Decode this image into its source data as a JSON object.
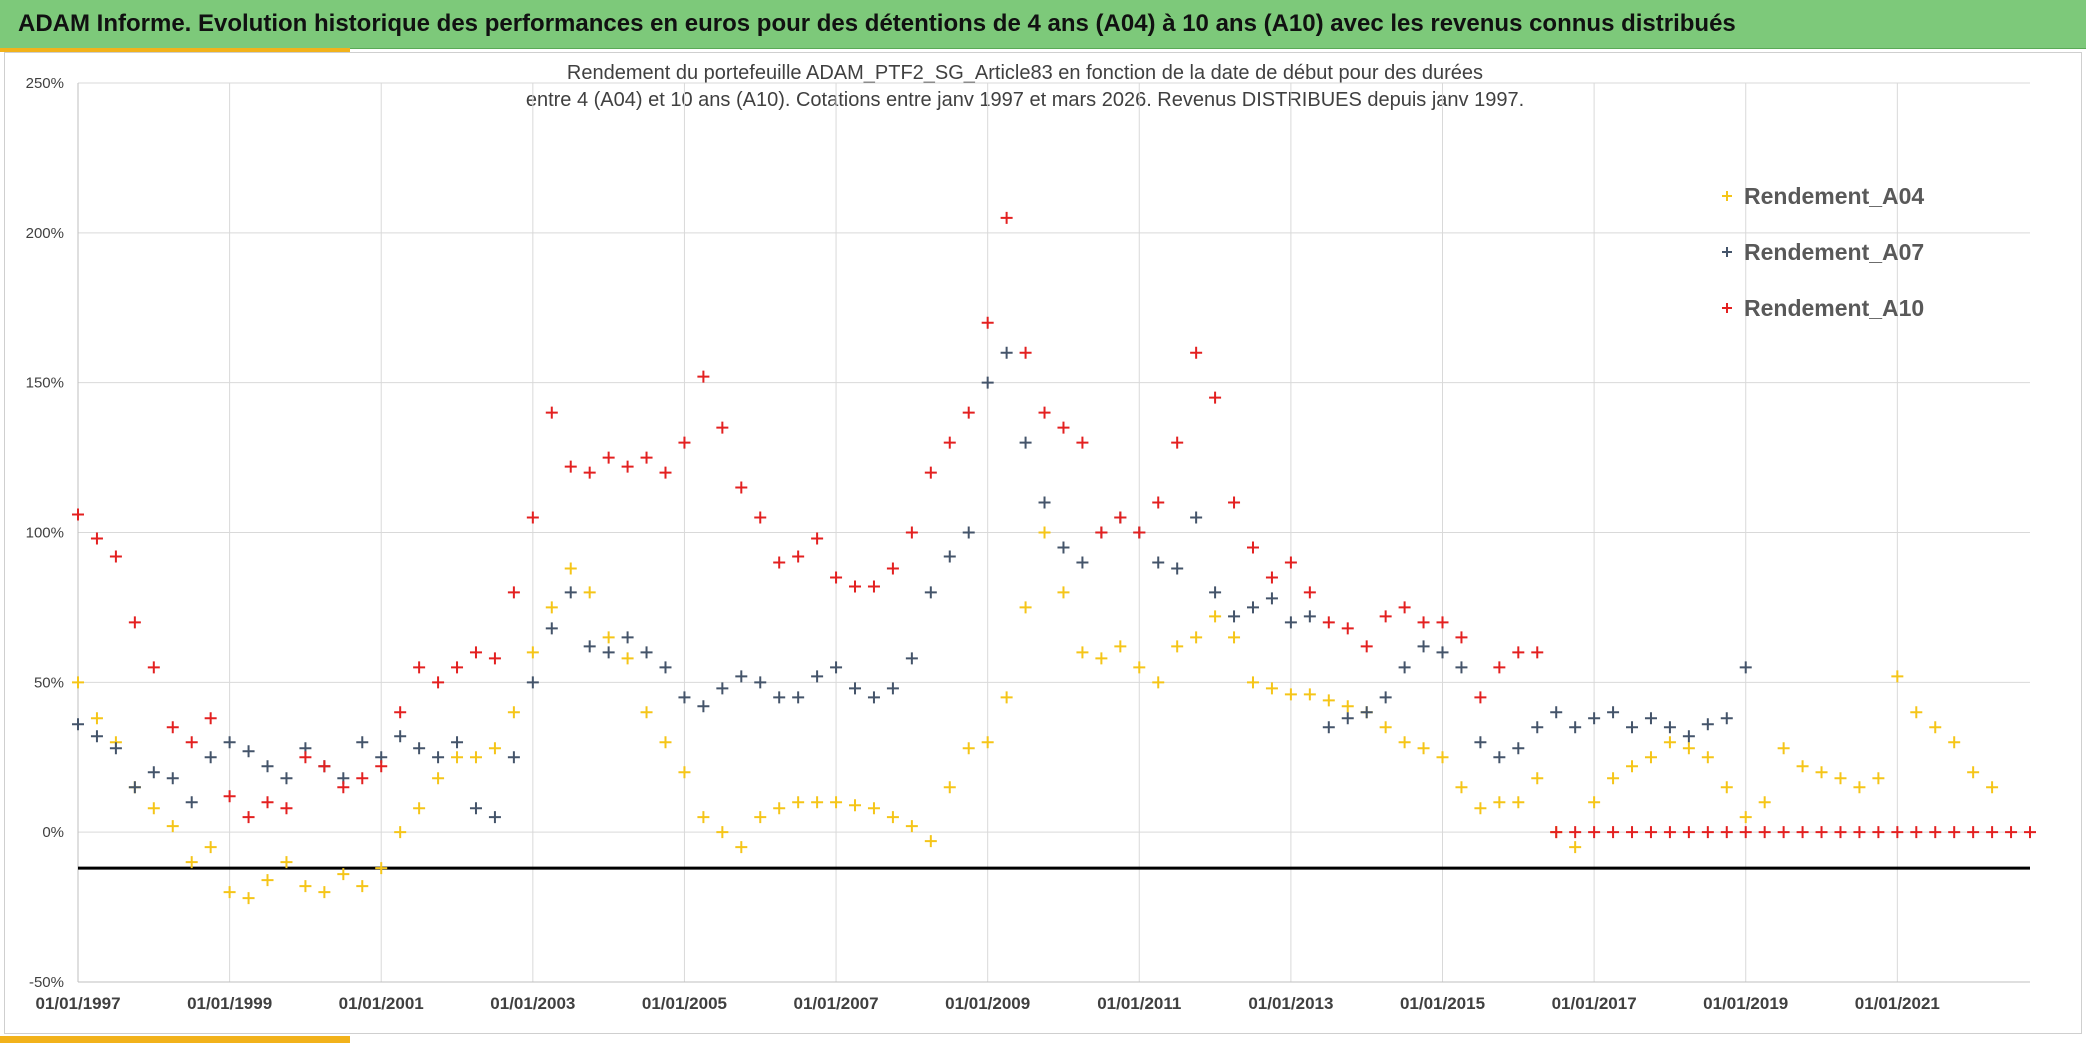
{
  "header": {
    "title": "ADAM Informe. Evolution historique des performances en euros pour des détentions de 4 ans (A04) à 10 ans (A10) avec les revenus connus distribués"
  },
  "colors": {
    "A04": "#f5c518",
    "A07": "#44546a",
    "A10": "#e32020",
    "baseline": "#000000",
    "grid": "#d9d9d9",
    "banner": "#7dc97a",
    "accent": "#f2b21b"
  },
  "chart_data": {
    "type": "scatter",
    "title_line1": "Rendement du portefeuille ADAM_PTF2_SG_Article83  en fonction de la date de début pour des durées",
    "title_line2": "entre 4 (A04) et 10 ans (A10). Cotations entre janv 1997 et mars 2026. Revenus DISTRIBUES depuis janv 1997.",
    "xlabel": "",
    "ylabel": "",
    "xlim": [
      1997.0,
      2022.75
    ],
    "ylim": [
      -50,
      250
    ],
    "y_ticks": [
      -50,
      0,
      50,
      100,
      150,
      200,
      250
    ],
    "y_tick_labels": [
      "-50%",
      "0%",
      "50%",
      "100%",
      "150%",
      "200%",
      "250%"
    ],
    "x_ticks": [
      1997,
      1999,
      2001,
      2003,
      2005,
      2007,
      2009,
      2011,
      2013,
      2015,
      2017,
      2019,
      2021
    ],
    "x_tick_labels": [
      "01/01/1997",
      "01/01/1999",
      "01/01/2001",
      "01/01/2003",
      "01/01/2005",
      "01/01/2007",
      "01/01/2009",
      "01/01/2011",
      "01/01/2013",
      "01/01/2015",
      "01/01/2017",
      "01/01/2019",
      "01/01/2021"
    ],
    "reference_line_y": -12,
    "legend_position": "top-right",
    "marker": "+",
    "series": [
      {
        "name": "Rendement_A04",
        "x": [
          1997.0,
          1997.25,
          1997.5,
          1997.75,
          1998.0,
          1998.25,
          1998.5,
          1998.75,
          1999.0,
          1999.25,
          1999.5,
          1999.75,
          2000.0,
          2000.25,
          2000.5,
          2000.75,
          2001.0,
          2001.25,
          2001.5,
          2001.75,
          2002.0,
          2002.25,
          2002.5,
          2002.75,
          2003.0,
          2003.25,
          2003.5,
          2003.75,
          2004.0,
          2004.25,
          2004.5,
          2004.75,
          2005.0,
          2005.25,
          2005.5,
          2005.75,
          2006.0,
          2006.25,
          2006.5,
          2006.75,
          2007.0,
          2007.25,
          2007.5,
          2007.75,
          2008.0,
          2008.25,
          2008.5,
          2008.75,
          2009.0,
          2009.25,
          2009.5,
          2009.75,
          2010.0,
          2010.25,
          2010.5,
          2010.75,
          2011.0,
          2011.25,
          2011.5,
          2011.75,
          2012.0,
          2012.25,
          2012.5,
          2012.75,
          2013.0,
          2013.25,
          2013.5,
          2013.75,
          2014.0,
          2014.25,
          2014.5,
          2014.75,
          2015.0,
          2015.25,
          2015.5,
          2015.75,
          2016.0,
          2016.25,
          2016.5,
          2016.75,
          2017.0,
          2017.25,
          2017.5,
          2017.75,
          2018.0,
          2018.25,
          2018.5,
          2018.75,
          2019.0,
          2019.25,
          2019.5,
          2019.75,
          2020.0,
          2020.25,
          2020.5,
          2020.75,
          2021.0,
          2021.25,
          2021.5,
          2021.75,
          2022.0,
          2022.25
        ],
        "y": [
          50,
          38,
          30,
          15,
          8,
          2,
          -10,
          -5,
          -20,
          -22,
          -16,
          -10,
          -18,
          -20,
          -14,
          -18,
          -12,
          0,
          8,
          18,
          25,
          25,
          28,
          40,
          60,
          75,
          88,
          80,
          65,
          58,
          40,
          30,
          20,
          5,
          0,
          -5,
          5,
          8,
          10,
          10,
          10,
          9,
          8,
          5,
          2,
          -3,
          15,
          28,
          30,
          45,
          75,
          100,
          80,
          60,
          58,
          62,
          55,
          50,
          62,
          65,
          72,
          65,
          50,
          48,
          46,
          46,
          44,
          42,
          40,
          35,
          30,
          28,
          25,
          15,
          8,
          10,
          10,
          18,
          0,
          -5,
          10,
          18,
          22,
          25,
          30,
          28,
          25,
          15,
          5,
          10,
          28,
          22,
          20,
          18,
          15,
          18,
          52,
          40,
          35,
          30,
          20,
          15
        ]
      },
      {
        "name": "Rendement_A07",
        "x": [
          1997.0,
          1997.25,
          1997.5,
          1997.75,
          1998.0,
          1998.25,
          1998.5,
          1998.75,
          1999.0,
          1999.25,
          1999.5,
          1999.75,
          2000.0,
          2000.25,
          2000.5,
          2000.75,
          2001.0,
          2001.25,
          2001.5,
          2001.75,
          2002.0,
          2002.25,
          2002.5,
          2002.75,
          2003.0,
          2003.25,
          2003.5,
          2003.75,
          2004.0,
          2004.25,
          2004.5,
          2004.75,
          2005.0,
          2005.25,
          2005.5,
          2005.75,
          2006.0,
          2006.25,
          2006.5,
          2006.75,
          2007.0,
          2007.25,
          2007.5,
          2007.75,
          2008.0,
          2008.25,
          2008.5,
          2008.75,
          2009.0,
          2009.25,
          2009.5,
          2009.75,
          2010.0,
          2010.25,
          2010.5,
          2010.75,
          2011.0,
          2011.25,
          2011.5,
          2011.75,
          2012.0,
          2012.25,
          2012.5,
          2012.75,
          2013.0,
          2013.25,
          2013.5,
          2013.75,
          2014.0,
          2014.25,
          2014.5,
          2014.75,
          2015.0,
          2015.25,
          2015.5,
          2015.75,
          2016.0,
          2016.25,
          2016.5,
          2016.75,
          2017.0,
          2017.25,
          2017.5,
          2017.75,
          2018.0,
          2018.25,
          2018.5,
          2018.75,
          2019.0
        ],
        "y": [
          36,
          32,
          28,
          15,
          20,
          18,
          10,
          25,
          30,
          27,
          22,
          18,
          28,
          22,
          18,
          30,
          25,
          32,
          28,
          25,
          30,
          8,
          5,
          25,
          50,
          68,
          80,
          62,
          60,
          65,
          60,
          55,
          45,
          42,
          48,
          52,
          50,
          45,
          45,
          52,
          55,
          48,
          45,
          48,
          58,
          80,
          92,
          100,
          150,
          160,
          130,
          110,
          95,
          90,
          100,
          105,
          100,
          90,
          88,
          105,
          80,
          72,
          75,
          78,
          70,
          72,
          35,
          38,
          40,
          45,
          55,
          62,
          60,
          55,
          30,
          25,
          28,
          35,
          40,
          35,
          38,
          40,
          35,
          38,
          35,
          32,
          36,
          38,
          55
        ]
      },
      {
        "name": "Rendement_A10",
        "x": [
          1997.0,
          1997.25,
          1997.5,
          1997.75,
          1998.0,
          1998.25,
          1998.5,
          1998.75,
          1999.0,
          1999.25,
          1999.5,
          1999.75,
          2000.0,
          2000.25,
          2000.5,
          2000.75,
          2001.0,
          2001.25,
          2001.5,
          2001.75,
          2002.0,
          2002.25,
          2002.5,
          2002.75,
          2003.0,
          2003.25,
          2003.5,
          2003.75,
          2004.0,
          2004.25,
          2004.5,
          2004.75,
          2005.0,
          2005.25,
          2005.5,
          2005.75,
          2006.0,
          2006.25,
          2006.5,
          2006.75,
          2007.0,
          2007.25,
          2007.5,
          2007.75,
          2008.0,
          2008.25,
          2008.5,
          2008.75,
          2009.0,
          2009.25,
          2009.5,
          2009.75,
          2010.0,
          2010.25,
          2010.5,
          2010.75,
          2011.0,
          2011.25,
          2011.5,
          2011.75,
          2012.0,
          2012.25,
          2012.5,
          2012.75,
          2013.0,
          2013.25,
          2013.5,
          2013.75,
          2014.0,
          2014.25,
          2014.5,
          2014.75,
          2015.0,
          2015.25,
          2015.5,
          2015.75,
          2016.0,
          2016.25,
          2016.5,
          2016.75,
          2017.0,
          2017.25,
          2017.5,
          2017.75,
          2018.0,
          2018.25,
          2018.5,
          2018.75,
          2019.0,
          2019.25,
          2019.5,
          2019.75,
          2020.0,
          2020.25,
          2020.5,
          2020.75,
          2021.0,
          2021.25,
          2021.5,
          2021.75,
          2022.0,
          2022.25,
          2022.5,
          2022.75
        ],
        "y": [
          106,
          98,
          92,
          70,
          55,
          35,
          30,
          38,
          12,
          5,
          10,
          8,
          25,
          22,
          15,
          18,
          22,
          40,
          55,
          50,
          55,
          60,
          58,
          80,
          105,
          140,
          122,
          120,
          125,
          122,
          125,
          120,
          130,
          152,
          135,
          115,
          105,
          90,
          92,
          98,
          85,
          82,
          82,
          88,
          100,
          120,
          130,
          140,
          170,
          205,
          160,
          140,
          135,
          130,
          100,
          105,
          100,
          110,
          130,
          160,
          145,
          110,
          95,
          85,
          90,
          80,
          70,
          68,
          62,
          72,
          75,
          70,
          70,
          65,
          45,
          55,
          60,
          60,
          0,
          0,
          0,
          0,
          0,
          0,
          0,
          0,
          0,
          0,
          0,
          0,
          0,
          0,
          0,
          0,
          0,
          0,
          0,
          0,
          0,
          0,
          0,
          0,
          0,
          0
        ]
      }
    ]
  }
}
